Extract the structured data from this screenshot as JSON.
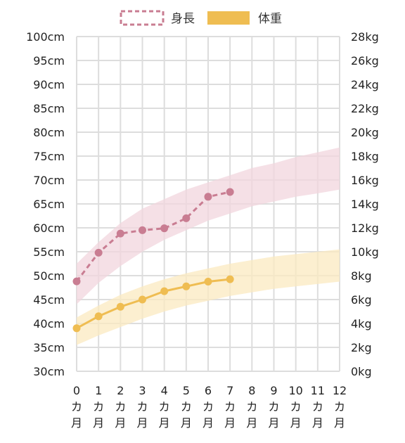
{
  "chart_data": {
    "type": "line",
    "legend": {
      "placement": "top-center",
      "height_label": "身長",
      "weight_label": "体重"
    },
    "colors": {
      "height": "#c97d92",
      "height_band": "#f1d5dd",
      "weight": "#efbd52",
      "weight_band": "#fbe9c0",
      "grid": "#dddddd"
    },
    "x": {
      "range": [
        0,
        12
      ],
      "ticks": [
        0,
        1,
        2,
        3,
        4,
        5,
        6,
        7,
        8,
        9,
        10,
        11,
        12
      ],
      "unit_chars": [
        "カ",
        "月"
      ]
    },
    "y_left": {
      "range": [
        30,
        100
      ],
      "ticks": [
        30,
        35,
        40,
        45,
        50,
        55,
        60,
        65,
        70,
        75,
        80,
        85,
        90,
        95,
        100
      ],
      "labels": [
        "30cm",
        "35cm",
        "40cm",
        "45cm",
        "50cm",
        "55cm",
        "60cm",
        "65cm",
        "70cm",
        "75cm",
        "80cm",
        "85cm",
        "90cm",
        "95cm",
        "100cm"
      ]
    },
    "y_right": {
      "range": [
        0,
        28
      ],
      "ticks": [
        0,
        2,
        4,
        6,
        8,
        10,
        12,
        14,
        16,
        18,
        20,
        22,
        24,
        26,
        28
      ],
      "labels": [
        "0kg",
        "2kg",
        "4kg",
        "6kg",
        "8kg",
        "10kg",
        "12kg",
        "14kg",
        "16kg",
        "18kg",
        "20kg",
        "22kg",
        "24kg",
        "26kg",
        "28kg"
      ]
    },
    "grid": true,
    "series": [
      {
        "name": "身長",
        "axis": "left",
        "style": "dashed",
        "x": [
          0,
          1,
          2,
          3,
          4,
          5,
          6,
          7
        ],
        "values": [
          48.8,
          54.8,
          58.8,
          59.5,
          59.9,
          62.0,
          66.5,
          67.5
        ]
      },
      {
        "name": "体重",
        "axis": "right",
        "style": "solid",
        "x": [
          0,
          1,
          2,
          3,
          4,
          5,
          6,
          7
        ],
        "values": [
          3.6,
          4.6,
          5.4,
          6.0,
          6.7,
          7.1,
          7.5,
          7.7
        ]
      }
    ],
    "bands": [
      {
        "series": "身長",
        "axis": "left",
        "x": [
          0,
          1,
          2,
          3,
          4,
          5,
          6,
          7,
          8,
          9,
          10,
          11,
          12
        ],
        "lower": [
          44.0,
          48.5,
          52.0,
          55.0,
          57.5,
          59.5,
          61.5,
          63.0,
          64.5,
          65.5,
          66.5,
          67.2,
          68.0
        ],
        "upper": [
          52.5,
          57.0,
          61.0,
          64.0,
          66.0,
          68.0,
          69.5,
          71.0,
          72.5,
          73.5,
          74.8,
          75.8,
          76.8
        ]
      },
      {
        "series": "体重",
        "axis": "right",
        "x": [
          0,
          1,
          2,
          3,
          4,
          5,
          6,
          7,
          8,
          9,
          10,
          11,
          12
        ],
        "lower": [
          2.2,
          3.0,
          3.7,
          4.4,
          5.0,
          5.5,
          5.9,
          6.3,
          6.6,
          6.9,
          7.1,
          7.3,
          7.5
        ],
        "upper": [
          4.5,
          5.5,
          6.4,
          7.1,
          7.7,
          8.2,
          8.6,
          9.0,
          9.3,
          9.6,
          9.8,
          10.0,
          10.2
        ]
      }
    ]
  }
}
